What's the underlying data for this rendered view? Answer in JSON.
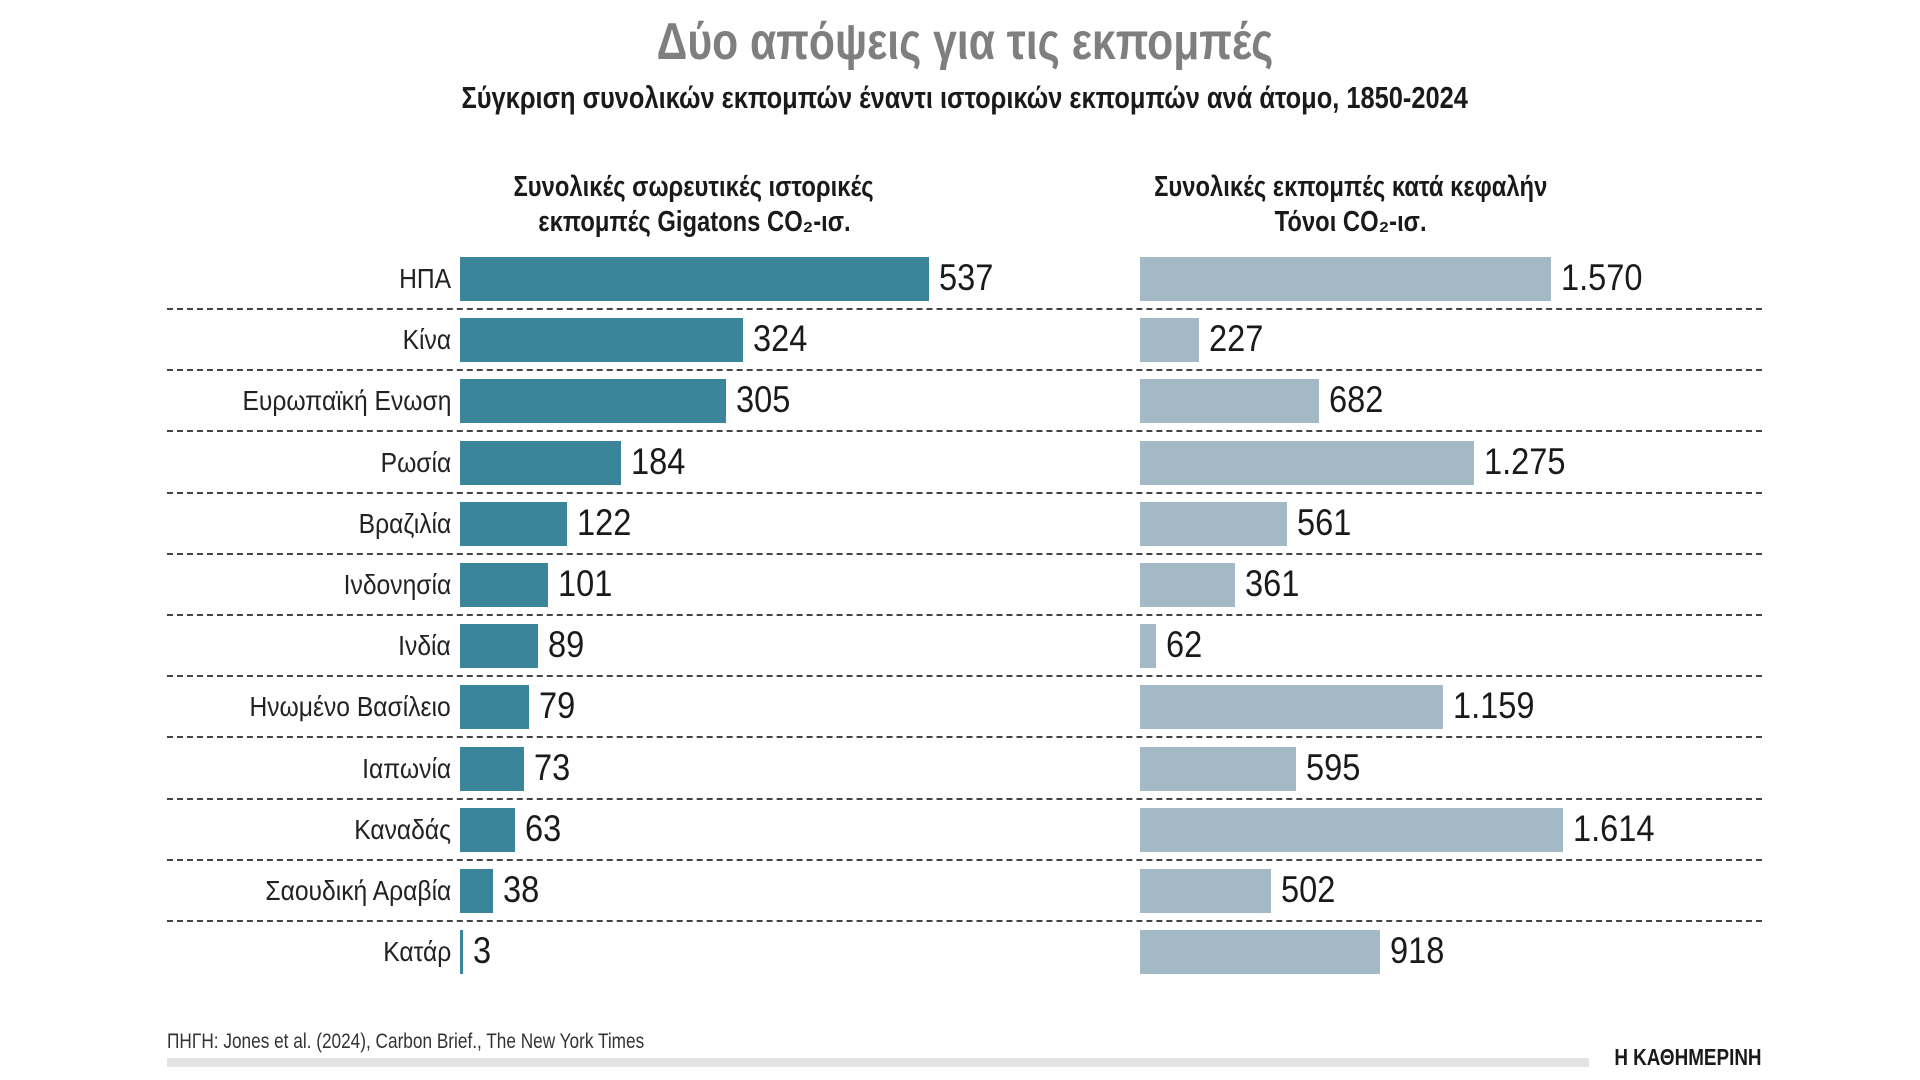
{
  "title": "Δύο απόψεις για τις εκπομπές",
  "subtitle": "Σύγκριση συνολικών εκπομπών έναντι ιστορικών εκπομπών ανά άτομο, 1850-2024",
  "source": "ΠΗΓΗ: Jones et al. (2024), Carbon Brief., The New York Times",
  "logo": "Η ΚΑΘΗΜΕΡΙΝΗ",
  "chart_data": [
    {
      "type": "bar",
      "orientation": "horizontal",
      "title_line1": "Συνολικές σωρευτικές ιστορικές",
      "title_line2": "εκπομπές Gigatons CO₂-ισ.",
      "categories": [
        "ΗΠΑ",
        "Κίνα",
        "Ευρωπαϊκή Ενωση",
        "Ρωσία",
        "Βραζιλία",
        "Ινδονησία",
        "Ινδία",
        "Ηνωμένο Βασίλειο",
        "Ιαπωνία",
        "Καναδάς",
        "Σαουδική Αραβία",
        "Κατάρ"
      ],
      "values": [
        537,
        324,
        305,
        184,
        122,
        101,
        89,
        79,
        73,
        63,
        38,
        3
      ],
      "value_labels": [
        "537",
        "324",
        "305",
        "184",
        "122",
        "101",
        "89",
        "79",
        "73",
        "63",
        "38",
        "3"
      ],
      "color": "#3a8599"
    },
    {
      "type": "bar",
      "orientation": "horizontal",
      "title_line1": "Συνολικές εκπομπές κατά κεφαλήν",
      "title_line2": "Τόνοι CO₂-ισ.",
      "categories": [
        "ΗΠΑ",
        "Κίνα",
        "Ευρωπαϊκή Ενωση",
        "Ρωσία",
        "Βραζιλία",
        "Ινδονησία",
        "Ινδία",
        "Ηνωμένο Βασίλειο",
        "Ιαπωνία",
        "Καναδάς",
        "Σαουδική Αραβία",
        "Κατάρ"
      ],
      "values": [
        1570,
        227,
        682,
        1275,
        561,
        361,
        62,
        1159,
        595,
        1614,
        502,
        918
      ],
      "value_labels": [
        "1.570",
        "227",
        "682",
        "1.275",
        "561",
        "361",
        "62",
        "1.159",
        "595",
        "1.614",
        "502",
        "918"
      ],
      "color": "#a3bac6"
    }
  ]
}
